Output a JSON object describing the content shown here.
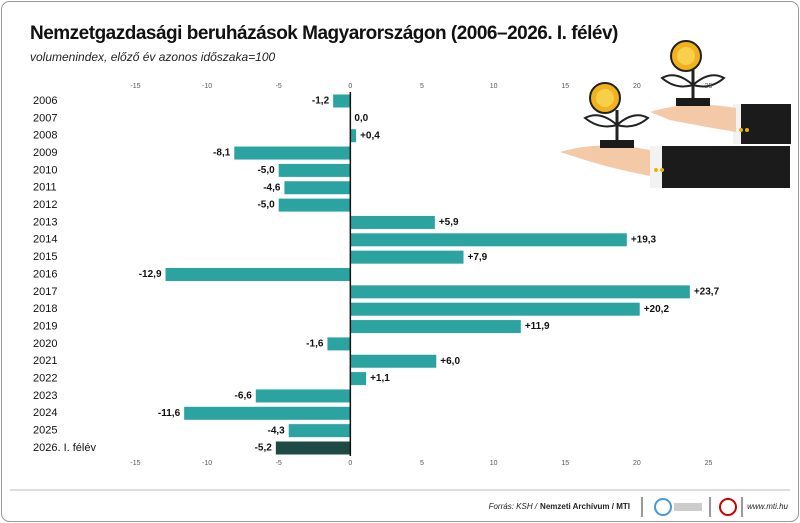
{
  "chart_data": {
    "type": "bar",
    "orientation": "horizontal",
    "title": "Nemzetgazdasági beruházások Magyarországon (2006–2026. I. félév)",
    "subtitle": "volumenindex, előző év azonos időszaka=100",
    "categories": [
      "2006",
      "2007",
      "2008",
      "2009",
      "2010",
      "2011",
      "2012",
      "2013",
      "2014",
      "2015",
      "2016",
      "2017",
      "2018",
      "2019",
      "2020",
      "2021",
      "2022",
      "2023",
      "2024",
      "2025",
      "2026. I. félév"
    ],
    "values": [
      -1.2,
      0.0,
      0.4,
      -8.1,
      -5.0,
      -4.6,
      -5.0,
      5.9,
      19.3,
      7.9,
      -12.9,
      23.7,
      20.2,
      11.9,
      -1.6,
      6.0,
      1.1,
      -6.6,
      -11.6,
      -4.3,
      -5.2
    ],
    "value_labels": [
      "-1,2",
      "0,0",
      "+0,4",
      "-8,1",
      "-5,0",
      "-4,6",
      "-5,0",
      "+5,9",
      "+19,3",
      "+7,9",
      "-12,9",
      "+23,7",
      "+20,2",
      "+11,9",
      "-1,6",
      "+6,0",
      "+1,1",
      "-6,6",
      "-11,6",
      "-4,3",
      "-5,2"
    ],
    "colors": [
      "#2aa3a1",
      "#2aa3a1",
      "#2aa3a1",
      "#2aa3a1",
      "#2aa3a1",
      "#2aa3a1",
      "#2aa3a1",
      "#2aa3a1",
      "#2aa3a1",
      "#2aa3a1",
      "#2aa3a1",
      "#2aa3a1",
      "#2aa3a1",
      "#2aa3a1",
      "#2aa3a1",
      "#2aa3a1",
      "#2aa3a1",
      "#2aa3a1",
      "#2aa3a1",
      "#2aa3a1",
      "#1d4a45"
    ],
    "xlim": [
      -22.5,
      27.2
    ],
    "xticks": [
      -15,
      -10,
      -5,
      0,
      5,
      10,
      15,
      20,
      25
    ],
    "grid": false,
    "source_prefix": "Forrás: KSH /",
    "source_bold": "Nemzeti Archívum / MTI",
    "website": "www.mti.hu"
  }
}
